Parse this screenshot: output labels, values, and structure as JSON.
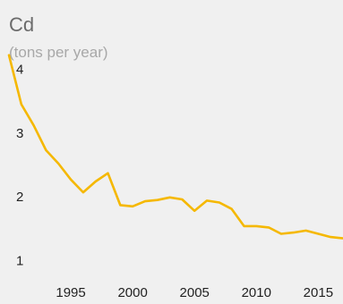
{
  "chart_data": {
    "type": "line",
    "title": "Cd",
    "subtitle": "(tons per year)",
    "xlabel": "",
    "ylabel": "",
    "xlim": [
      1990,
      2017
    ],
    "ylim": [
      0.6,
      4.3
    ],
    "x_ticks": [
      1995,
      2000,
      2005,
      2010,
      2015
    ],
    "y_ticks": [
      1,
      2,
      3,
      4
    ],
    "grid": false,
    "legend": "none",
    "series_color": "#f5b800",
    "background_color": "#f0f0f0",
    "series": [
      {
        "x": [
          1990,
          1991,
          1992,
          1993,
          1994,
          1995,
          1996,
          1997,
          1998,
          1999,
          2000,
          2001,
          2002,
          2003,
          2004,
          2005,
          2006,
          2007,
          2008,
          2009,
          2010,
          2011,
          2012,
          2013,
          2014,
          2015,
          2016,
          2017
        ],
        "values": [
          4.22,
          3.45,
          3.12,
          2.73,
          2.52,
          2.27,
          2.07,
          2.24,
          2.37,
          1.87,
          1.85,
          1.93,
          1.95,
          1.99,
          1.96,
          1.78,
          1.94,
          1.91,
          1.81,
          1.54,
          1.54,
          1.52,
          1.42,
          1.44,
          1.47,
          1.42,
          1.37,
          1.35
        ]
      }
    ]
  }
}
